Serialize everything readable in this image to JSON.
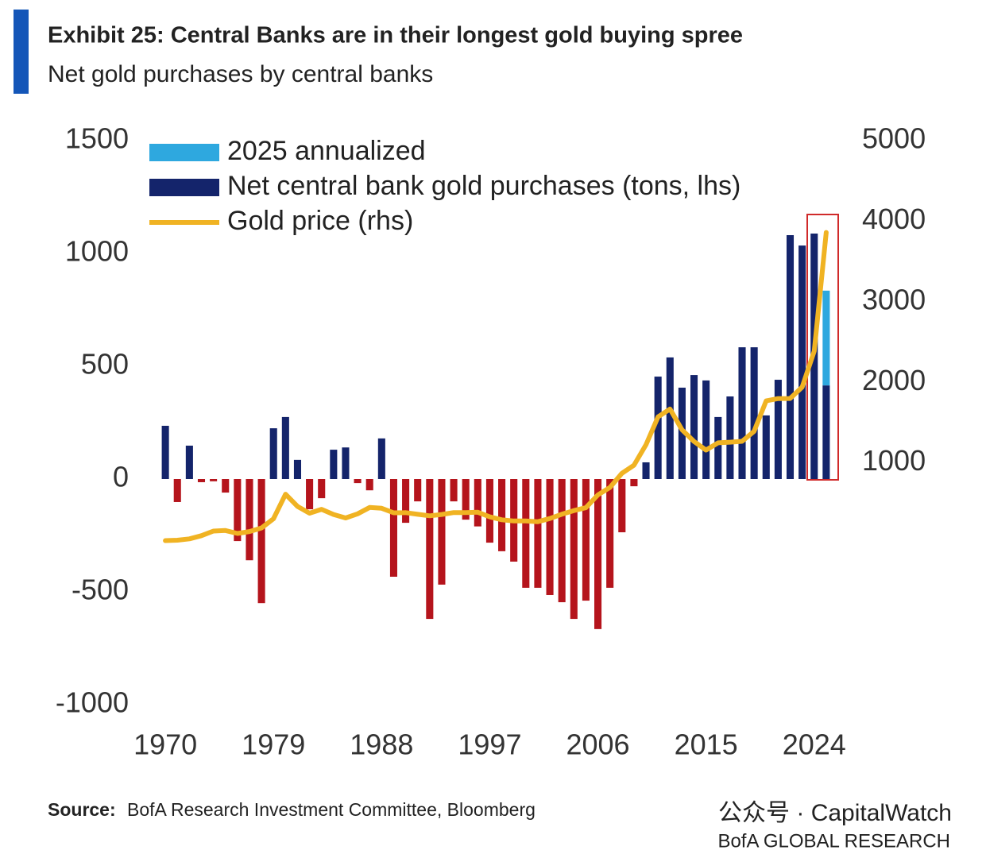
{
  "chart_data": {
    "type": "bar",
    "title": "Exhibit 25: Central Banks are in their longest gold buying spree",
    "subtitle": "Net gold purchases by central banks",
    "source_label": "Source:",
    "source": "BofA Research Investment Committee, Bloomberg",
    "watermark": "公众号 · CapitalWatch",
    "brand": "BofA GLOBAL RESEARCH",
    "x": [
      1970,
      1971,
      1972,
      1973,
      1974,
      1975,
      1976,
      1977,
      1978,
      1979,
      1980,
      1981,
      1982,
      1983,
      1984,
      1985,
      1986,
      1987,
      1988,
      1989,
      1990,
      1991,
      1992,
      1993,
      1994,
      1995,
      1996,
      1997,
      1998,
      1999,
      2000,
      2001,
      2002,
      2003,
      2004,
      2005,
      2006,
      2007,
      2008,
      2009,
      2010,
      2011,
      2012,
      2013,
      2014,
      2015,
      2016,
      2017,
      2018,
      2019,
      2020,
      2021,
      2022,
      2023,
      2024,
      2025
    ],
    "xlim": [
      1969,
      2026
    ],
    "xticks": [
      1970,
      1979,
      1988,
      1997,
      2006,
      2015,
      2024
    ],
    "ylim": [
      -1000,
      1500
    ],
    "yticks": [
      -1000,
      -500,
      0,
      500,
      1000,
      1500
    ],
    "y2lim": [
      -2000,
      5000
    ],
    "y2ticks": [
      1000,
      2000,
      3000,
      4000,
      5000
    ],
    "legend": "top-left",
    "series": [
      {
        "name": "2025 annualized",
        "color": "#2ea8df",
        "stack": true,
        "values": [
          null,
          null,
          null,
          null,
          null,
          null,
          null,
          null,
          null,
          null,
          null,
          null,
          null,
          null,
          null,
          null,
          null,
          null,
          null,
          null,
          null,
          null,
          null,
          null,
          null,
          null,
          null,
          null,
          null,
          null,
          null,
          null,
          null,
          null,
          null,
          null,
          null,
          null,
          null,
          null,
          null,
          null,
          null,
          null,
          null,
          null,
          null,
          null,
          null,
          null,
          null,
          null,
          null,
          null,
          null,
          420
        ]
      },
      {
        "name": "Net central bank gold purchases (tons, lhs)",
        "color": "#14246b",
        "negative_color": "#b5141c",
        "values": [
          236,
          -102,
          148,
          -14,
          -10,
          -60,
          -275,
          -360,
          -550,
          225,
          275,
          85,
          -134,
          -85,
          130,
          140,
          -18,
          -50,
          180,
          -433,
          -194,
          -99,
          -620,
          -468,
          -99,
          -180,
          -210,
          -282,
          -320,
          -366,
          -482,
          -482,
          -514,
          -546,
          -620,
          -539,
          -665,
          -482,
          -236,
          -32,
          74,
          454,
          539,
          405,
          461,
          437,
          275,
          366,
          584,
          584,
          282,
          440,
          1081,
          1035,
          1088,
          415
        ]
      },
      {
        "name": "Gold price (rhs)",
        "color": "#f0b323",
        "axis": "y2",
        "kind": "line",
        "values": [
          36,
          41,
          58,
          97,
          154,
          161,
          125,
          148,
          193,
          307,
          612,
          460,
          376,
          424,
          360,
          317,
          368,
          447,
          437,
          381,
          383,
          362,
          344,
          360,
          384,
          384,
          388,
          331,
          294,
          279,
          279,
          271,
          310,
          363,
          409,
          444,
          603,
          695,
          872,
          972,
          1225,
          1571,
          1669,
          1411,
          1266,
          1160,
          1250,
          1257,
          1268,
          1393,
          1770,
          1799,
          1800,
          1941,
          2386,
          3860
        ]
      }
    ]
  }
}
